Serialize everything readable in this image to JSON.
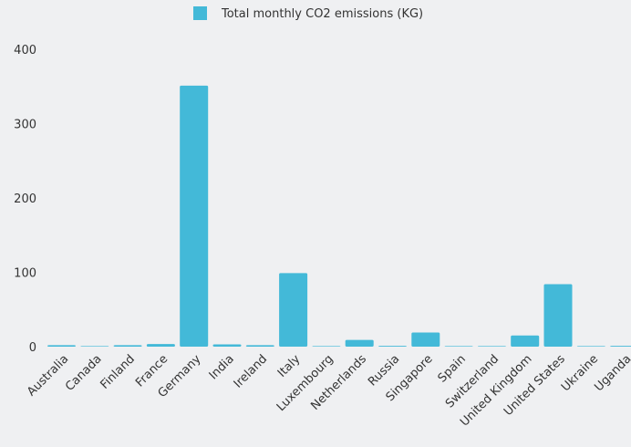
{
  "colors": {
    "bar": "#43b9d8",
    "background": "#eff0f2",
    "text": "#333333"
  },
  "chart_data": {
    "type": "bar",
    "categories": [
      "Australia",
      "Canada",
      "Finland",
      "France",
      "Germany",
      "India",
      "Ireland",
      "Italy",
      "Luxembourg",
      "Netherlands",
      "Russia",
      "Singapore",
      "Spain",
      "Switzerland",
      "United Kingdom",
      "United States",
      "Ukraine",
      "Uganda"
    ],
    "series": [
      {
        "name": "Total monthly CO2 emissions (KG)",
        "values": [
          2,
          0.3,
          2,
          3.5,
          351,
          3,
          2,
          99,
          0.3,
          9,
          1,
          19,
          0.3,
          0.3,
          15,
          84,
          0.5,
          1
        ]
      }
    ],
    "yticks": [
      0,
      100,
      200,
      300,
      400
    ],
    "ylim": [
      0,
      400
    ],
    "legend_position": "top-center",
    "grid": false
  }
}
